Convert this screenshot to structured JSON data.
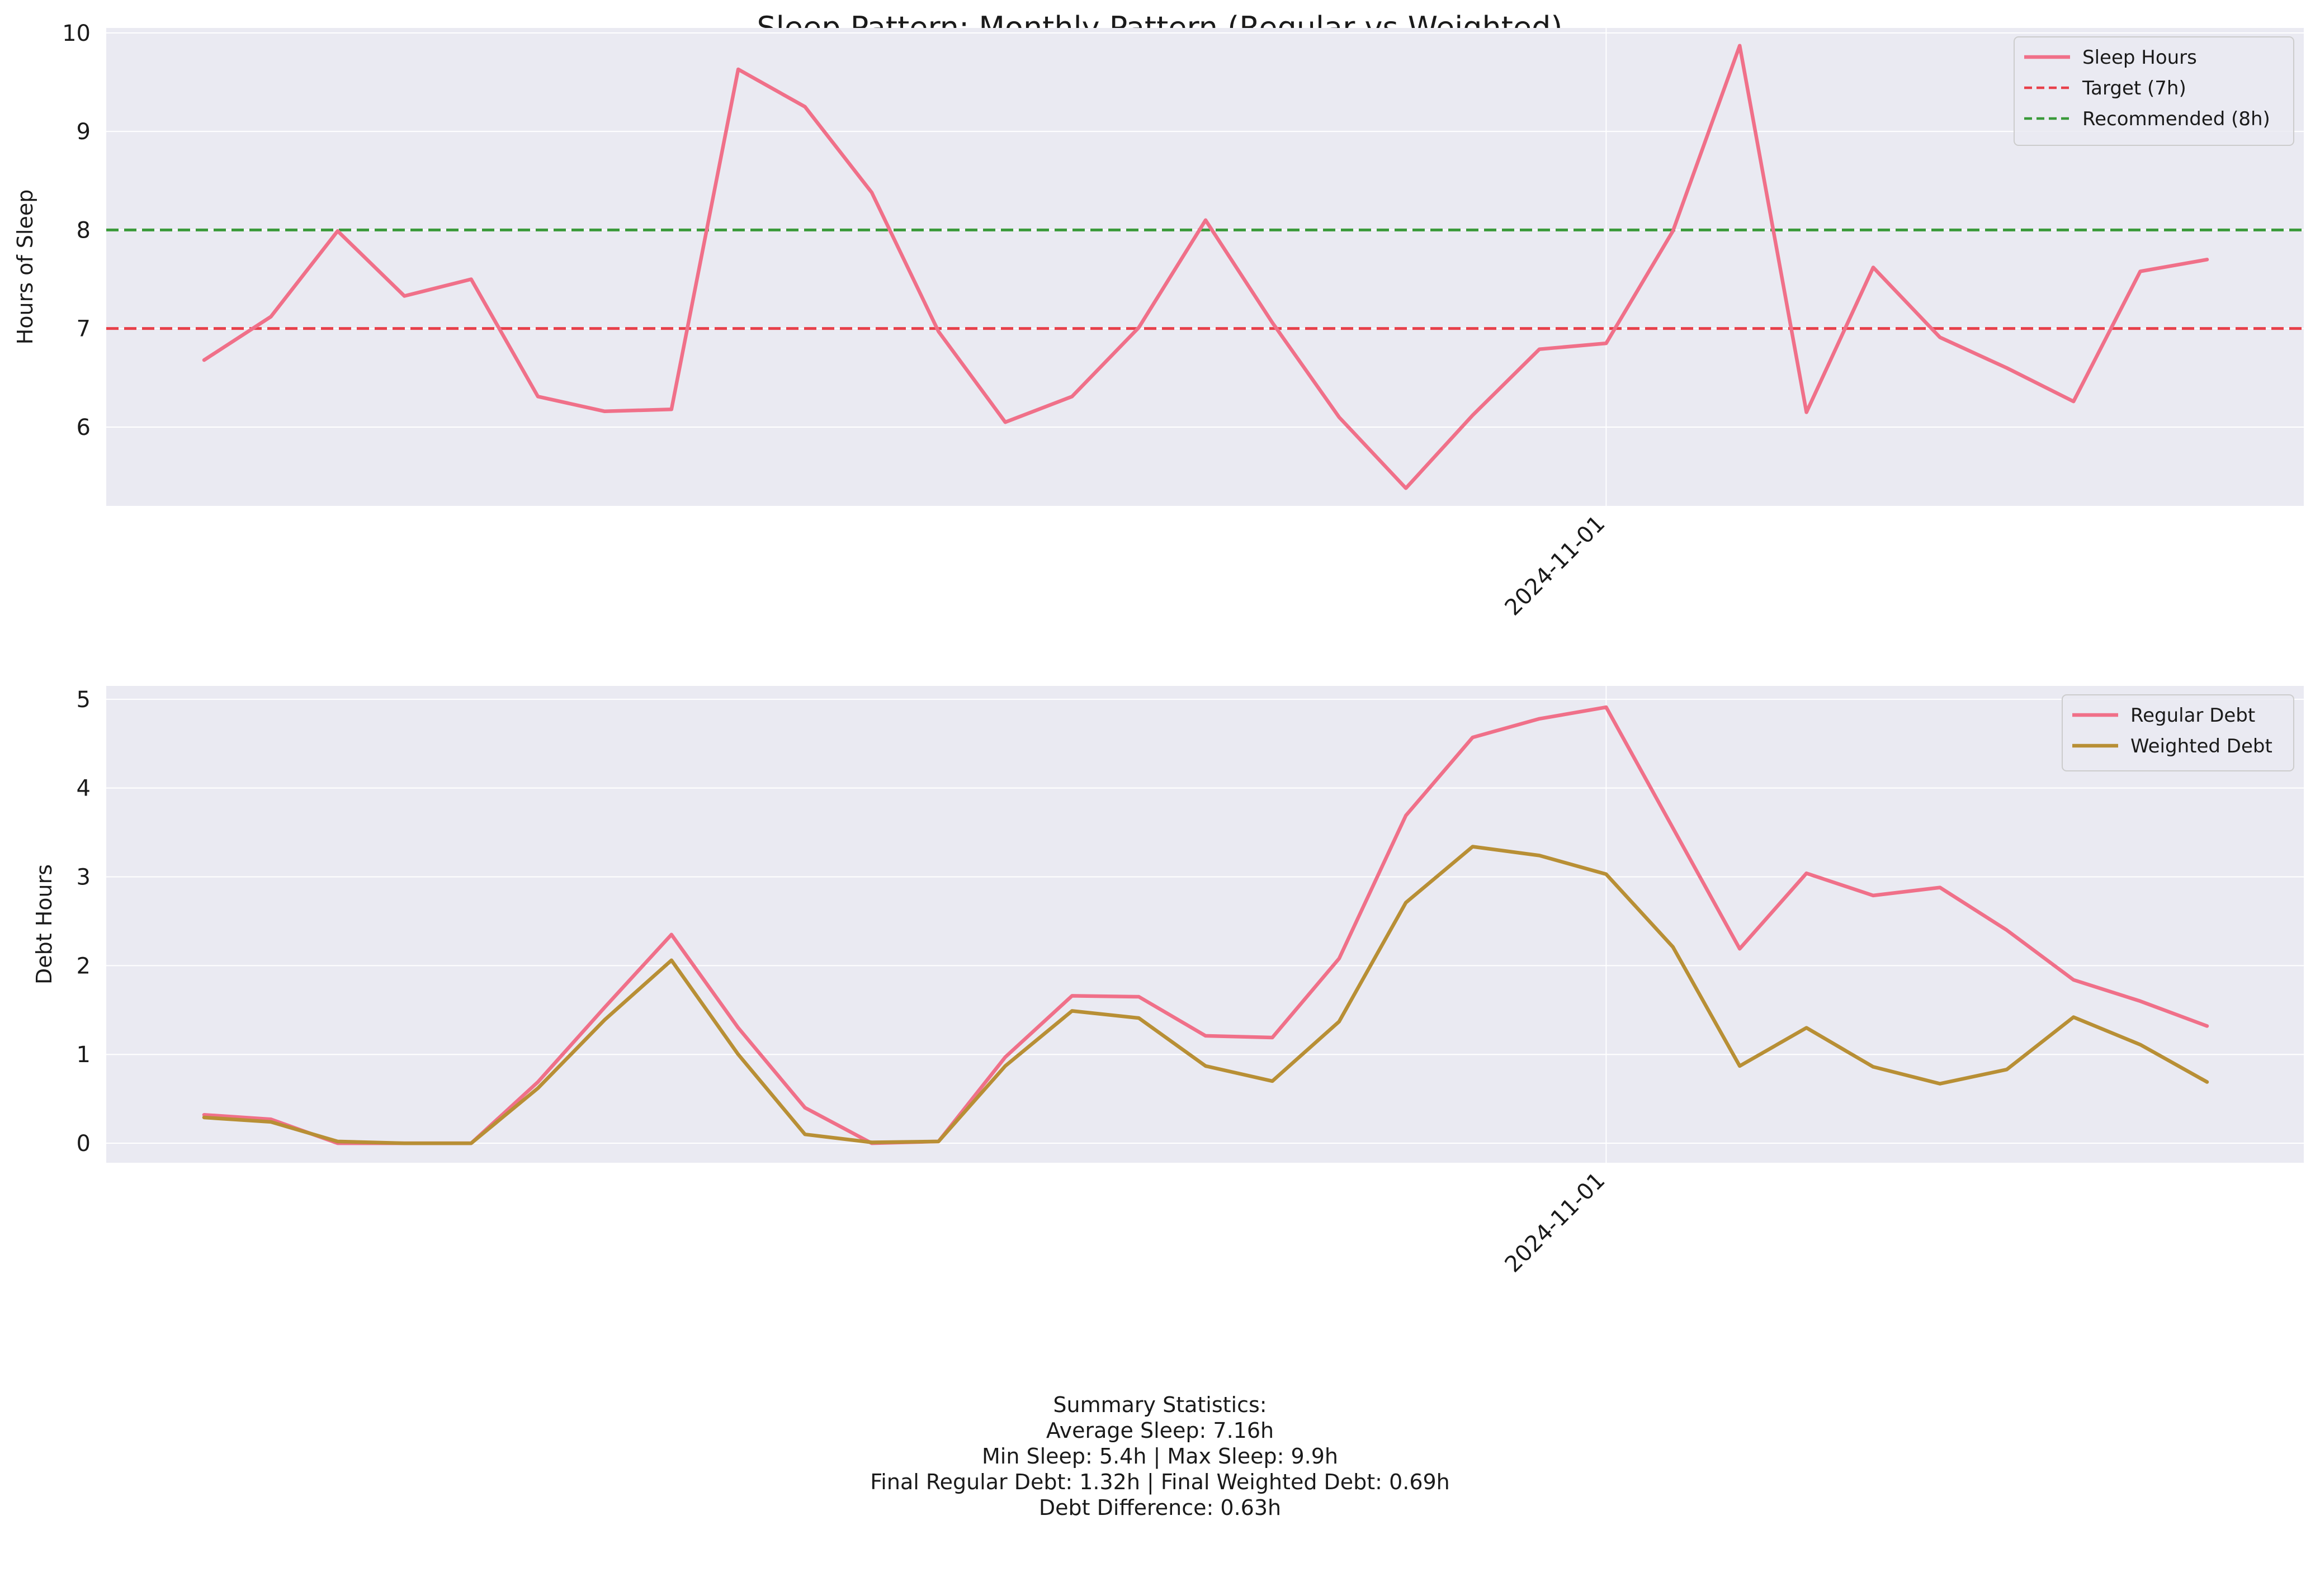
{
  "figure": {
    "title": "Sleep Pattern: Monthly Pattern (Regular vs Weighted)"
  },
  "colors": {
    "background": "#eaeaf2",
    "grid": "#ffffff",
    "sleep": "#f07089",
    "target": "#e8404a",
    "recommended": "#3a9a3a",
    "regular_debt": "#f07089",
    "weighted_debt": "#b88f35"
  },
  "chart_data": [
    {
      "type": "line",
      "ylabel": "Hours of Sleep",
      "xlabel": "",
      "ylim": [
        5.2,
        10.05
      ],
      "yticks": [
        6,
        7,
        8,
        9,
        10
      ],
      "x_tick_labels": [
        "2024-11-01"
      ],
      "grid": true,
      "legend_position": "top-right",
      "series": [
        {
          "name": "Sleep Hours",
          "style": "solid",
          "values": [
            6.68,
            7.12,
            7.99,
            7.33,
            7.5,
            6.31,
            6.16,
            6.18,
            9.63,
            9.25,
            8.38,
            6.97,
            6.05,
            6.31,
            7.01,
            8.1,
            7.06,
            6.1,
            5.38,
            6.12,
            6.79,
            6.85,
            7.99,
            9.87,
            6.15,
            7.62,
            6.91,
            6.6,
            6.26,
            7.58,
            7.7
          ]
        }
      ],
      "reference_lines": [
        {
          "name": "Target (7h)",
          "y": 7,
          "style": "dashed"
        },
        {
          "name": "Recommended (8h)",
          "y": 8,
          "style": "dashed"
        }
      ]
    },
    {
      "type": "line",
      "ylabel": "Debt Hours",
      "xlabel": "",
      "ylim": [
        -0.22,
        5.15
      ],
      "yticks": [
        0,
        1,
        2,
        3,
        4,
        5
      ],
      "x_tick_labels": [
        "2024-11-01"
      ],
      "grid": true,
      "legend_position": "top-right",
      "series": [
        {
          "name": "Regular Debt",
          "values": [
            0.32,
            0.27,
            0.0,
            0.0,
            0.0,
            0.69,
            1.53,
            2.35,
            1.3,
            0.4,
            0.0,
            0.02,
            0.97,
            1.66,
            1.65,
            1.21,
            1.19,
            2.08,
            3.69,
            4.57,
            4.78,
            4.91,
            3.55,
            2.19,
            3.04,
            2.79,
            2.88,
            2.4,
            1.84,
            1.6,
            1.32
          ]
        },
        {
          "name": "Weighted Debt",
          "values": [
            0.29,
            0.24,
            0.02,
            0.0,
            0.0,
            0.62,
            1.39,
            2.06,
            1.0,
            0.1,
            0.01,
            0.02,
            0.87,
            1.49,
            1.41,
            0.87,
            0.7,
            1.37,
            2.71,
            3.34,
            3.24,
            3.03,
            2.21,
            0.87,
            1.3,
            0.86,
            0.67,
            0.83,
            1.42,
            1.11,
            0.69
          ]
        }
      ]
    }
  ],
  "summary": {
    "title": "Summary Statistics:",
    "line1": "Average Sleep: 7.16h",
    "line2": "Min Sleep: 5.4h | Max Sleep: 9.9h",
    "line3": "Final Regular Debt: 1.32h | Final Weighted Debt: 0.69h",
    "line4": "Debt Difference: 0.63h"
  }
}
